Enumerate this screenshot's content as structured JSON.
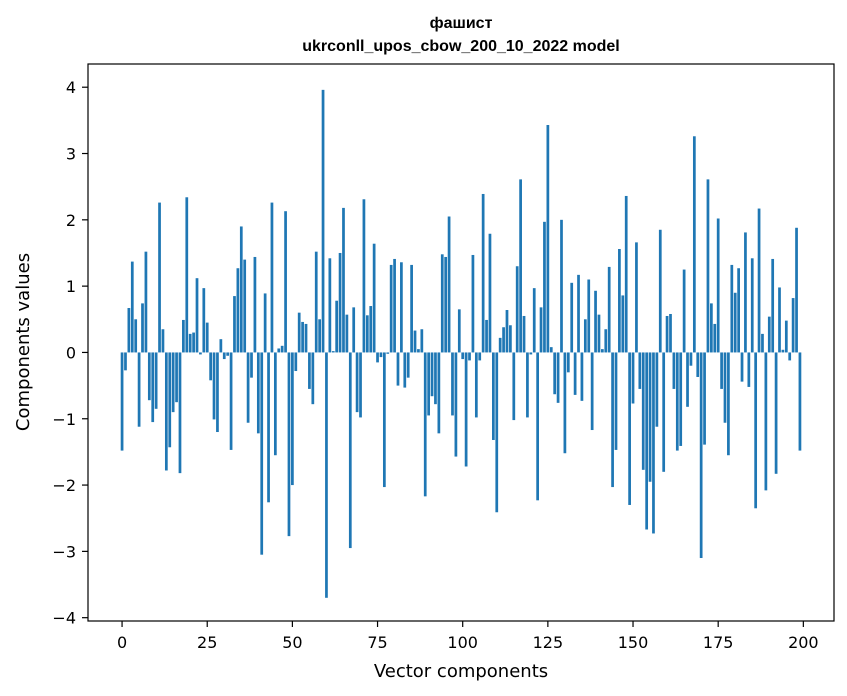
{
  "chart_data": {
    "type": "bar",
    "title": "фашист",
    "subtitle": "ukrconll_upos_cbow_200_10_2022 model",
    "xlabel": "Vector components",
    "ylabel": "Components values",
    "xlim": [
      -10,
      209
    ],
    "ylim": [
      -4.05,
      4.35
    ],
    "xticks": [
      0,
      25,
      50,
      75,
      100,
      125,
      150,
      175,
      200
    ],
    "yticks": [
      -4,
      -3,
      -2,
      -1,
      0,
      1,
      2,
      3,
      4
    ],
    "xtick_labels": [
      "0",
      "25",
      "50",
      "75",
      "100",
      "125",
      "150",
      "175",
      "200"
    ],
    "ytick_labels": [
      "−4",
      "−3",
      "−2",
      "−1",
      "0",
      "1",
      "2",
      "3",
      "4"
    ],
    "grid": false,
    "bar_color": "#1f77b4",
    "x": [
      0,
      1,
      2,
      3,
      4,
      5,
      6,
      7,
      8,
      9,
      10,
      11,
      12,
      13,
      14,
      15,
      16,
      17,
      18,
      19,
      20,
      21,
      22,
      23,
      24,
      25,
      26,
      27,
      28,
      29,
      30,
      31,
      32,
      33,
      34,
      35,
      36,
      37,
      38,
      39,
      40,
      41,
      42,
      43,
      44,
      45,
      46,
      47,
      48,
      49,
      50,
      51,
      52,
      53,
      54,
      55,
      56,
      57,
      58,
      59,
      60,
      61,
      62,
      63,
      64,
      65,
      66,
      67,
      68,
      69,
      70,
      71,
      72,
      73,
      74,
      75,
      76,
      77,
      78,
      79,
      80,
      81,
      82,
      83,
      84,
      85,
      86,
      87,
      88,
      89,
      90,
      91,
      92,
      93,
      94,
      95,
      96,
      97,
      98,
      99,
      100,
      101,
      102,
      103,
      104,
      105,
      106,
      107,
      108,
      109,
      110,
      111,
      112,
      113,
      114,
      115,
      116,
      117,
      118,
      119,
      120,
      121,
      122,
      123,
      124,
      125,
      126,
      127,
      128,
      129,
      130,
      131,
      132,
      133,
      134,
      135,
      136,
      137,
      138,
      139,
      140,
      141,
      142,
      143,
      144,
      145,
      146,
      147,
      148,
      149,
      150,
      151,
      152,
      153,
      154,
      155,
      156,
      157,
      158,
      159,
      160,
      161,
      162,
      163,
      164,
      165,
      166,
      167,
      168,
      169,
      170,
      171,
      172,
      173,
      174,
      175,
      176,
      177,
      178,
      179,
      180,
      181,
      182,
      183,
      184,
      185,
      186,
      187,
      188,
      189,
      190,
      191,
      192,
      193,
      194,
      195,
      196,
      197,
      198,
      199
    ],
    "values": [
      -1.48,
      -0.27,
      0.67,
      1.37,
      0.5,
      -1.12,
      0.74,
      1.52,
      -0.72,
      -1.05,
      -0.85,
      2.26,
      0.35,
      -1.78,
      -1.43,
      -0.9,
      -0.75,
      -1.82,
      0.49,
      2.34,
      0.28,
      0.3,
      1.12,
      -0.03,
      0.97,
      0.45,
      -0.42,
      -1.01,
      -1.2,
      0.2,
      -0.1,
      -0.05,
      -1.47,
      0.85,
      1.27,
      1.9,
      1.4,
      -1.06,
      -0.38,
      1.44,
      -1.22,
      -3.05,
      0.89,
      -2.26,
      2.26,
      -1.55,
      0.06,
      0.1,
      2.13,
      -2.77,
      -2.0,
      -0.28,
      0.6,
      0.46,
      0.43,
      -0.55,
      -0.78,
      1.52,
      0.5,
      3.96,
      -3.7,
      1.42,
      0.02,
      0.78,
      1.5,
      2.18,
      0.57,
      -2.95,
      0.68,
      -0.9,
      -0.98,
      2.31,
      0.56,
      0.7,
      1.64,
      -0.15,
      -0.07,
      -2.03,
      -0.02,
      1.32,
      1.41,
      -0.5,
      1.36,
      -0.53,
      -0.38,
      1.32,
      0.33,
      0.05,
      0.35,
      -2.17,
      -0.95,
      -0.66,
      -0.78,
      -1.22,
      1.48,
      1.44,
      2.05,
      -0.95,
      -1.57,
      0.65,
      -0.1,
      -1.72,
      -0.12,
      1.47,
      -0.98,
      -0.12,
      2.39,
      0.49,
      1.79,
      -1.32,
      -2.41,
      0.22,
      0.38,
      0.64,
      0.41,
      -1.02,
      1.3,
      2.61,
      0.55,
      -0.98,
      -0.03,
      0.97,
      -2.23,
      0.68,
      1.97,
      3.43,
      0.08,
      -0.63,
      -0.76,
      2.0,
      -1.52,
      -0.3,
      1.05,
      -0.64,
      1.17,
      -0.73,
      0.5,
      1.1,
      -1.17,
      0.93,
      0.57,
      0.05,
      0.35,
      1.29,
      -2.03,
      -1.47,
      1.56,
      0.86,
      2.36,
      -2.3,
      -0.77,
      1.66,
      -0.55,
      -1.77,
      -2.67,
      -1.95,
      -2.73,
      -1.12,
      1.85,
      -1.8,
      0.55,
      0.58,
      -0.55,
      -1.48,
      -1.41,
      1.25,
      -0.82,
      -0.2,
      3.26,
      -0.37,
      -3.1,
      -1.39,
      2.61,
      0.74,
      0.43,
      2.02,
      -0.55,
      -1.06,
      -1.55,
      1.32,
      0.9,
      1.27,
      -0.44,
      1.81,
      -0.52,
      1.42,
      -2.35,
      2.17,
      0.28,
      -2.08,
      0.54,
      1.41,
      -1.83,
      0.98,
      0.04,
      0.48,
      -0.12,
      0.82,
      1.88,
      -1.48
    ]
  }
}
